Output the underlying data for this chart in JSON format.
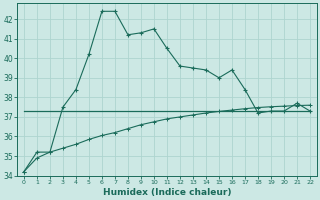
{
  "x": [
    0,
    1,
    2,
    3,
    4,
    5,
    6,
    7,
    8,
    9,
    10,
    11,
    12,
    13,
    14,
    15,
    16,
    17,
    18,
    19,
    20,
    21,
    22
  ],
  "line1": [
    34.2,
    35.2,
    35.2,
    37.5,
    38.4,
    40.2,
    42.4,
    42.4,
    41.2,
    41.3,
    41.5,
    40.5,
    39.6,
    39.5,
    39.4,
    39.0,
    39.4,
    38.4,
    37.2,
    37.3,
    37.3,
    37.7,
    37.3
  ],
  "line2": [
    37.3,
    37.3,
    37.3,
    37.3,
    37.3,
    37.3,
    37.3,
    37.3,
    37.3,
    37.3,
    37.3,
    37.3,
    37.3,
    37.3,
    37.3,
    37.3,
    37.3,
    37.3,
    37.3,
    37.3,
    37.3,
    37.3,
    37.3
  ],
  "line3": [
    34.2,
    34.9,
    35.2,
    35.4,
    35.6,
    35.85,
    36.05,
    36.2,
    36.4,
    36.6,
    36.75,
    36.9,
    37.0,
    37.1,
    37.2,
    37.28,
    37.35,
    37.42,
    37.48,
    37.52,
    37.55,
    37.58,
    37.6
  ],
  "line_color": "#1a6b5a",
  "bg_color": "#cce8e4",
  "grid_color": "#aed4cf",
  "xlabel": "Humidex (Indice chaleur)",
  "ylim": [
    34,
    42.8
  ],
  "xlim": [
    -0.5,
    22.5
  ],
  "yticks": [
    34,
    35,
    36,
    37,
    38,
    39,
    40,
    41,
    42
  ],
  "xticks": [
    0,
    1,
    2,
    3,
    4,
    5,
    6,
    7,
    8,
    9,
    10,
    11,
    12,
    13,
    14,
    15,
    16,
    17,
    18,
    19,
    20,
    21,
    22
  ]
}
